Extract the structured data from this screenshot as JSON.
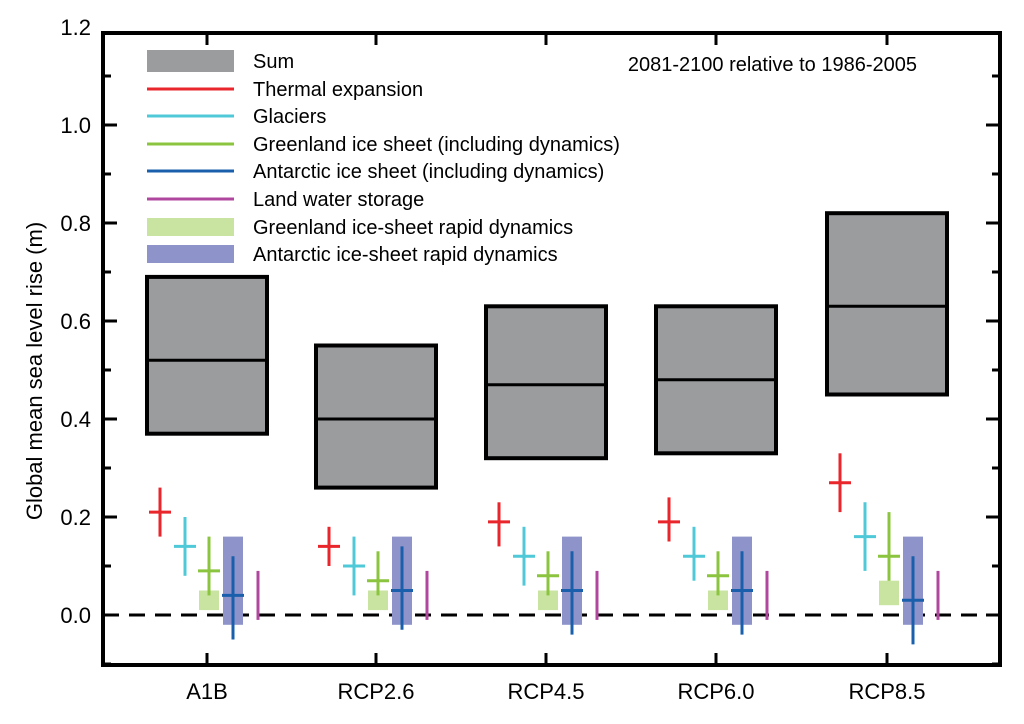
{
  "chart_data": {
    "type": "box-whisker",
    "title": "",
    "annotation": "2081-2100 relative to 1986-2005",
    "xlabel": "",
    "ylabel": "Global mean sea level rise (m)",
    "ylim": [
      -0.1,
      1.2
    ],
    "yticks": [
      "-0.0",
      "0.0",
      "0.2",
      "0.4",
      "0.6",
      "0.8",
      "1.0",
      "1.2"
    ],
    "ytick_values": [
      0.0,
      0.2,
      0.4,
      0.6,
      0.8,
      1.0,
      1.2
    ],
    "ytick_labels": [
      "0.0",
      "0.2",
      "0.4",
      "0.6",
      "0.8",
      "1.0",
      "1.2"
    ],
    "zero_line": "dashed",
    "legend_position": "top-left",
    "categories": [
      "A1B",
      "RCP2.6",
      "RCP4.5",
      "RCP6.0",
      "RCP8.5"
    ],
    "series": [
      {
        "name": "Sum",
        "kind": "box",
        "color": "#9a9c9e",
        "median": [
          0.52,
          0.4,
          0.47,
          0.48,
          0.63
        ],
        "low": [
          0.37,
          0.26,
          0.32,
          0.33,
          0.45
        ],
        "high": [
          0.69,
          0.55,
          0.63,
          0.63,
          0.82
        ]
      },
      {
        "name": "Thermal expansion",
        "kind": "cross",
        "color": "#e8262b",
        "median": [
          0.21,
          0.14,
          0.19,
          0.19,
          0.27
        ],
        "low": [
          0.16,
          0.1,
          0.14,
          0.15,
          0.21
        ],
        "high": [
          0.26,
          0.18,
          0.23,
          0.24,
          0.33
        ]
      },
      {
        "name": "Glaciers",
        "kind": "cross",
        "color": "#4fc8d7",
        "median": [
          0.14,
          0.1,
          0.12,
          0.12,
          0.16
        ],
        "low": [
          0.08,
          0.04,
          0.06,
          0.07,
          0.09
        ],
        "high": [
          0.2,
          0.16,
          0.18,
          0.18,
          0.23
        ]
      },
      {
        "name": "Greenland ice sheet (including dynamics)",
        "kind": "cross",
        "color": "#8bc43f",
        "median": [
          0.09,
          0.07,
          0.08,
          0.08,
          0.12
        ],
        "low": [
          0.04,
          0.04,
          0.04,
          0.04,
          0.07
        ],
        "high": [
          0.16,
          0.13,
          0.13,
          0.13,
          0.21
        ]
      },
      {
        "name": "Antarctic ice sheet (including dynamics)",
        "kind": "cross",
        "color": "#1a5fac",
        "median": [
          0.04,
          0.05,
          0.05,
          0.05,
          0.03
        ],
        "low": [
          -0.05,
          -0.03,
          -0.04,
          -0.04,
          -0.06
        ],
        "high": [
          0.12,
          0.14,
          0.13,
          0.13,
          0.12
        ]
      },
      {
        "name": "Land water storage",
        "kind": "line",
        "color": "#b0479f",
        "low": [
          -0.01,
          -0.01,
          -0.01,
          -0.01,
          -0.01
        ],
        "high": [
          0.09,
          0.09,
          0.09,
          0.09,
          0.09
        ]
      },
      {
        "name": "Greenland ice-sheet rapid dynamics",
        "kind": "bar",
        "color": "#c9e3a0",
        "low": [
          0.01,
          0.01,
          0.01,
          0.01,
          0.02
        ],
        "high": [
          0.05,
          0.05,
          0.05,
          0.05,
          0.07
        ]
      },
      {
        "name": "Antarctic ice-sheet rapid dynamics",
        "kind": "bar",
        "color": "#8e93c9",
        "low": [
          -0.02,
          -0.02,
          -0.02,
          -0.02,
          -0.02
        ],
        "high": [
          0.16,
          0.16,
          0.16,
          0.16,
          0.16
        ]
      }
    ]
  }
}
